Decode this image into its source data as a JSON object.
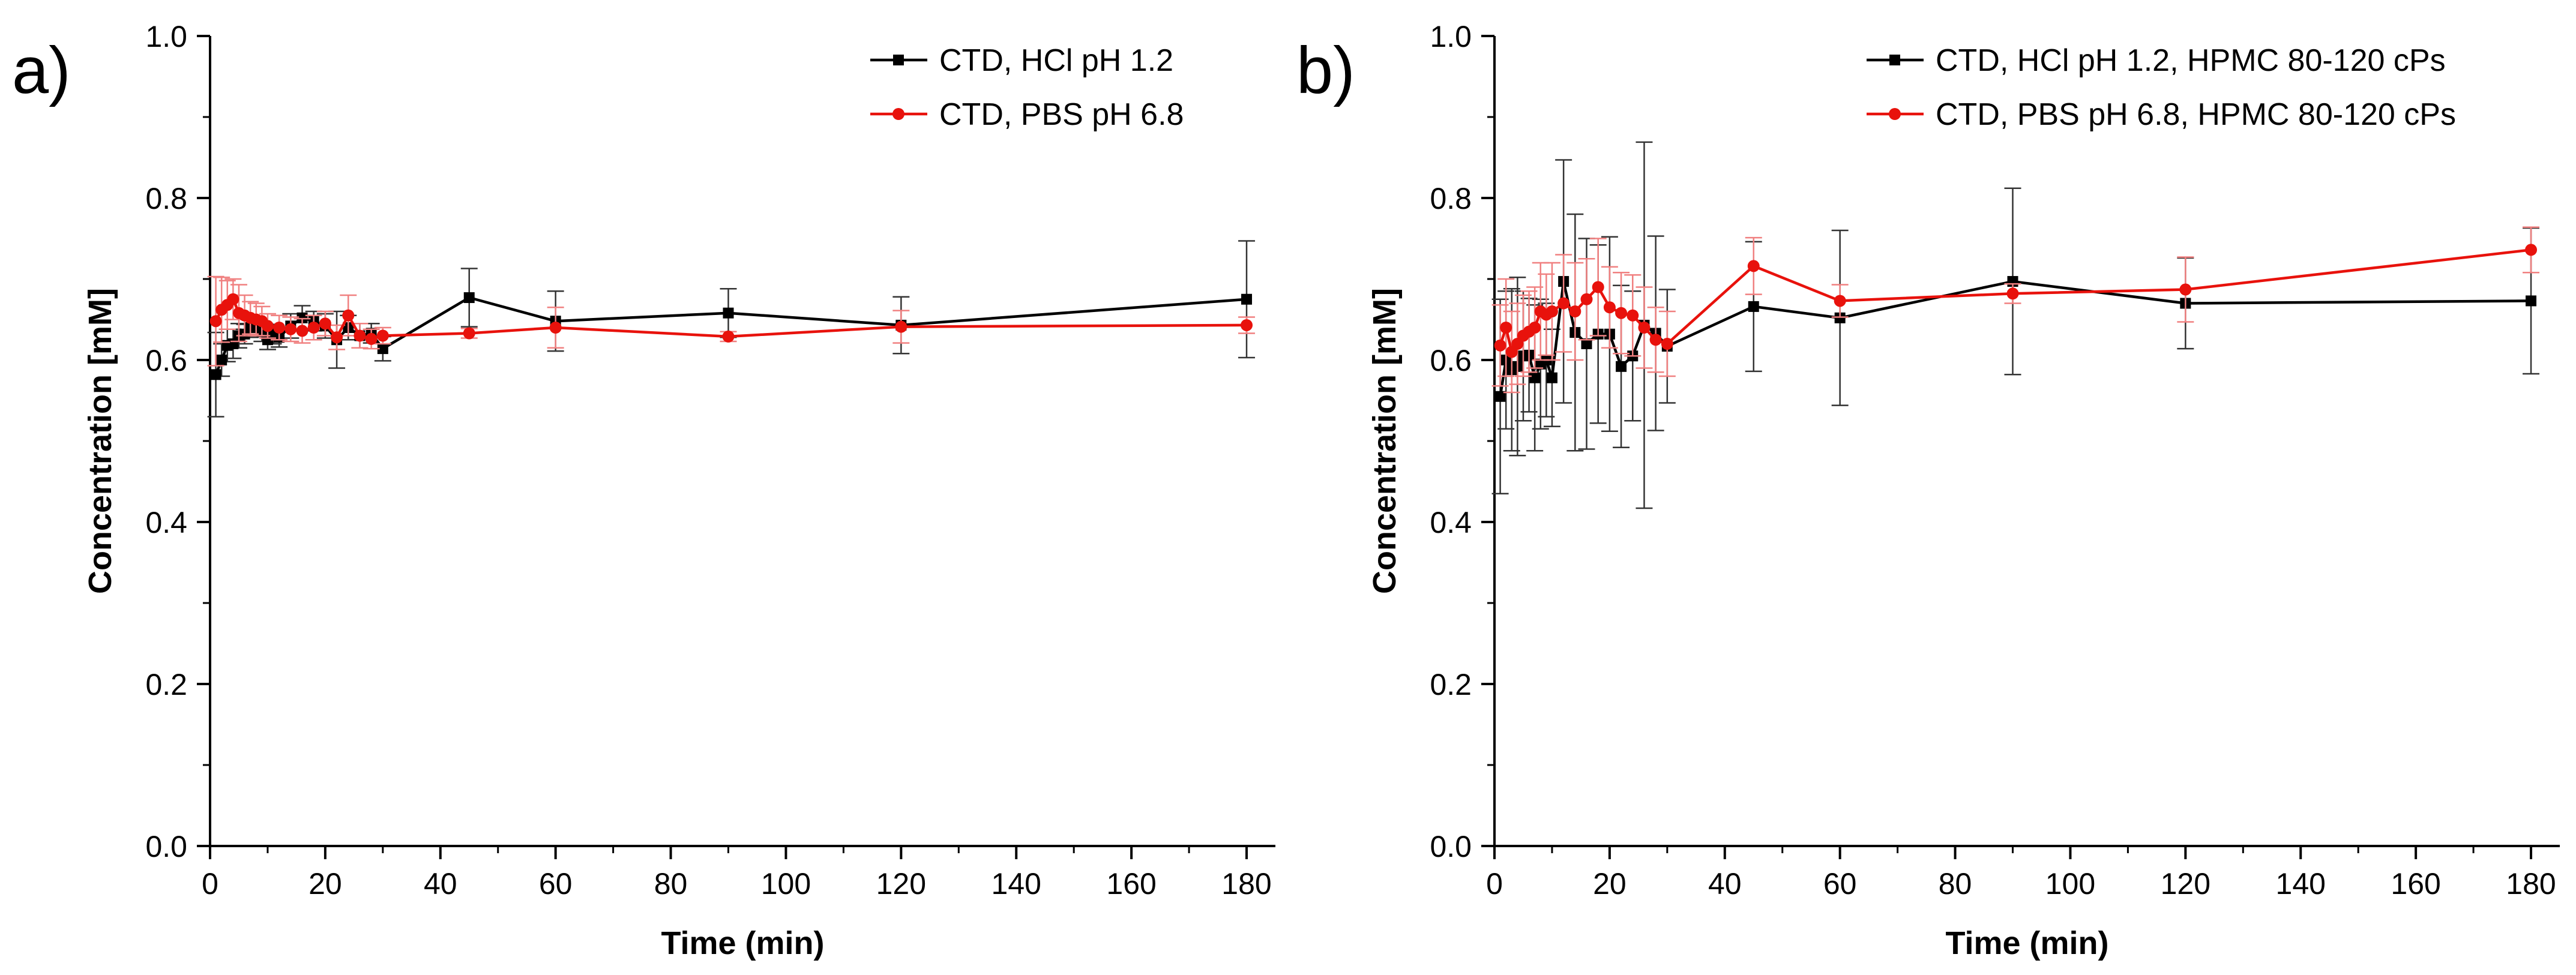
{
  "chart_data": [
    {
      "panel_label": "a)",
      "type": "line",
      "xlabel": "Time (min)",
      "ylabel": "Concentration [mM]",
      "xlim": [
        0,
        185
      ],
      "ylim": [
        0,
        1.0
      ],
      "x_ticks": [
        "0",
        "20",
        "40",
        "60",
        "80",
        "100",
        "120",
        "140",
        "160",
        "180"
      ],
      "y_ticks": [
        "0.0",
        "0.2",
        "0.4",
        "0.6",
        "0.8",
        "1.0"
      ],
      "legend_position": "top-right",
      "series": [
        {
          "name": "CTD, HCl pH 1.2",
          "color": "#000000",
          "marker": "square",
          "x": [
            1,
            2,
            3,
            4,
            5,
            6,
            7,
            8,
            9,
            10,
            11,
            12,
            14,
            16,
            18,
            20,
            22,
            24,
            26,
            28,
            30,
            45,
            60,
            90,
            120,
            180
          ],
          "y": [
            0.582,
            0.6,
            0.618,
            0.62,
            0.63,
            0.632,
            0.64,
            0.642,
            0.635,
            0.625,
            0.632,
            0.628,
            0.642,
            0.652,
            0.648,
            0.642,
            0.625,
            0.64,
            0.63,
            0.633,
            0.614,
            0.677,
            0.648,
            0.658,
            0.643,
            0.675
          ],
          "err": [
            0.052,
            0.02,
            0.02,
            0.018,
            0.015,
            0.012,
            0.012,
            0.012,
            0.012,
            0.012,
            0.012,
            0.012,
            0.015,
            0.015,
            0.012,
            0.015,
            0.035,
            0.015,
            0.015,
            0.012,
            0.015,
            0.036,
            0.037,
            0.03,
            0.035,
            0.072
          ]
        },
        {
          "name": "CTD, PBS pH 6.8",
          "color": "#e8120c",
          "marker": "circle",
          "x": [
            1,
            2,
            3,
            4,
            5,
            6,
            7,
            8,
            9,
            10,
            12,
            14,
            16,
            18,
            20,
            22,
            24,
            26,
            28,
            30,
            45,
            60,
            90,
            120,
            180
          ],
          "y": [
            0.648,
            0.662,
            0.668,
            0.675,
            0.658,
            0.655,
            0.652,
            0.65,
            0.648,
            0.642,
            0.64,
            0.638,
            0.636,
            0.64,
            0.645,
            0.628,
            0.655,
            0.63,
            0.626,
            0.63,
            0.633,
            0.64,
            0.629,
            0.641,
            0.643
          ],
          "err": [
            0.055,
            0.04,
            0.03,
            0.025,
            0.035,
            0.025,
            0.02,
            0.02,
            0.018,
            0.015,
            0.015,
            0.015,
            0.015,
            0.015,
            0.015,
            0.015,
            0.025,
            0.015,
            0.012,
            0.01,
            0.006,
            0.025,
            0.006,
            0.02,
            0.01
          ]
        }
      ]
    },
    {
      "panel_label": "b)",
      "type": "line",
      "xlabel": "Time (min)",
      "ylabel": "Concentration [mM]",
      "xlim": [
        0,
        185
      ],
      "ylim": [
        0,
        1.0
      ],
      "x_ticks": [
        "0",
        "20",
        "40",
        "60",
        "80",
        "100",
        "120",
        "140",
        "160",
        "180"
      ],
      "y_ticks": [
        "0.0",
        "0.2",
        "0.4",
        "0.6",
        "0.8",
        "1.0"
      ],
      "legend_position": "top-right",
      "series": [
        {
          "name": "CTD, HCl pH 1.2, HPMC 80-120 cPs",
          "color": "#000000",
          "marker": "square",
          "x": [
            1,
            2,
            3,
            4,
            5,
            6,
            7,
            8,
            9,
            10,
            12,
            14,
            16,
            18,
            20,
            22,
            24,
            26,
            28,
            30,
            45,
            60,
            90,
            120,
            180
          ],
          "y": [
            0.555,
            0.6,
            0.588,
            0.592,
            0.605,
            0.606,
            0.578,
            0.595,
            0.6,
            0.578,
            0.697,
            0.634,
            0.62,
            0.632,
            0.632,
            0.592,
            0.605,
            0.643,
            0.633,
            0.617,
            0.666,
            0.652,
            0.697,
            0.67,
            0.673
          ],
          "err": [
            0.12,
            0.085,
            0.1,
            0.11,
            0.08,
            0.07,
            0.09,
            0.08,
            0.07,
            0.06,
            0.15,
            0.146,
            0.13,
            0.11,
            0.12,
            0.1,
            0.08,
            0.226,
            0.12,
            0.07,
            0.08,
            0.108,
            0.115,
            0.056,
            0.09
          ]
        },
        {
          "name": "CTD, PBS pH 6.8, HPMC 80-120 cPs",
          "color": "#e8120c",
          "marker": "circle",
          "x": [
            1,
            2,
            3,
            4,
            5,
            6,
            7,
            8,
            9,
            10,
            12,
            14,
            16,
            18,
            20,
            22,
            24,
            26,
            28,
            30,
            45,
            60,
            90,
            120,
            180
          ],
          "y": [
            0.618,
            0.64,
            0.61,
            0.62,
            0.63,
            0.635,
            0.64,
            0.66,
            0.656,
            0.66,
            0.67,
            0.66,
            0.675,
            0.69,
            0.665,
            0.658,
            0.655,
            0.64,
            0.625,
            0.62,
            0.716,
            0.673,
            0.682,
            0.687,
            0.736
          ],
          "err": [
            0.05,
            0.06,
            0.05,
            0.05,
            0.05,
            0.05,
            0.05,
            0.06,
            0.05,
            0.06,
            0.06,
            0.06,
            0.05,
            0.06,
            0.05,
            0.05,
            0.05,
            0.05,
            0.04,
            0.04,
            0.035,
            0.02,
            0.012,
            0.04,
            0.028
          ]
        }
      ]
    }
  ]
}
